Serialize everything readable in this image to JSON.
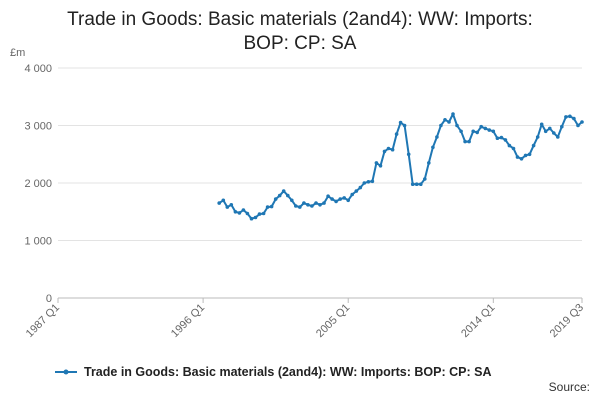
{
  "chart_data": {
    "type": "line",
    "title_line1": "Trade in Goods: Basic materials (2and4): WW: Imports:",
    "title_line2": "BOP: CP: SA",
    "unit_label": "£m",
    "ylim": [
      0,
      4000
    ],
    "y_ticks": [
      0,
      1000,
      2000,
      3000,
      4000
    ],
    "y_tick_labels": [
      "0",
      "1 000",
      "2 000",
      "3 000",
      "4 000"
    ],
    "x_range_index": [
      0,
      130
    ],
    "x_tick_index": [
      0,
      36,
      72,
      108,
      130
    ],
    "x_tick_labels": [
      "1987 Q1",
      "1996 Q1",
      "2005 Q1",
      "2014 Q1",
      "2019 Q3"
    ],
    "series": [
      {
        "name": "Trade in Goods: Basic materials (2and4): WW: Imports: BOP: CP: SA",
        "color": "#1f77b4",
        "start_index": 40,
        "values": [
          1650,
          1700,
          1580,
          1620,
          1500,
          1480,
          1530,
          1470,
          1380,
          1400,
          1460,
          1470,
          1580,
          1590,
          1720,
          1780,
          1860,
          1780,
          1700,
          1600,
          1580,
          1650,
          1620,
          1600,
          1650,
          1620,
          1650,
          1770,
          1720,
          1680,
          1720,
          1740,
          1700,
          1800,
          1860,
          1920,
          2000,
          2020,
          2030,
          2350,
          2300,
          2550,
          2600,
          2580,
          2850,
          3050,
          3000,
          2500,
          1980,
          1980,
          1980,
          2070,
          2350,
          2620,
          2800,
          3000,
          3100,
          3060,
          3200,
          3000,
          2900,
          2720,
          2720,
          2900,
          2880,
          2980,
          2950,
          2920,
          2900,
          2780,
          2790,
          2750,
          2650,
          2600,
          2450,
          2420,
          2480,
          2500,
          2650,
          2800,
          3020,
          2900,
          2950,
          2870,
          2800,
          2980,
          3150,
          3160,
          3120,
          3000,
          3060
        ]
      }
    ],
    "legend_position": "bottom",
    "grid": "horizontal"
  },
  "source_label": "Source:"
}
